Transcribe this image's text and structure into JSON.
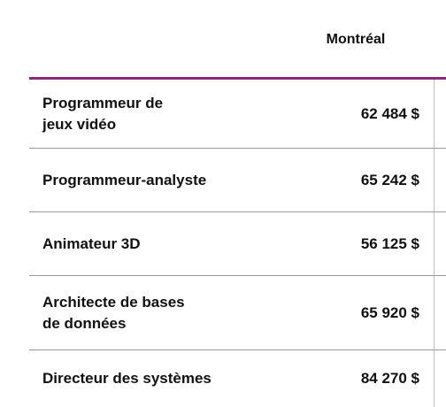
{
  "table": {
    "column_header": "Montréal",
    "rows": [
      {
        "label": "Programmeur de\njeux vidéo",
        "value": "62 484 $"
      },
      {
        "label": "Programmeur-analyste",
        "value": "65 242 $"
      },
      {
        "label": "Animateur 3D",
        "value": "56 125 $"
      },
      {
        "label": "Architecte de bases\nde données",
        "value": "65 920 $"
      },
      {
        "label": "Directeur des systèmes",
        "value": "84 270 $"
      }
    ]
  },
  "colors": {
    "accent_rule": "#8a2a7a",
    "row_divider": "#9a9a9a"
  }
}
